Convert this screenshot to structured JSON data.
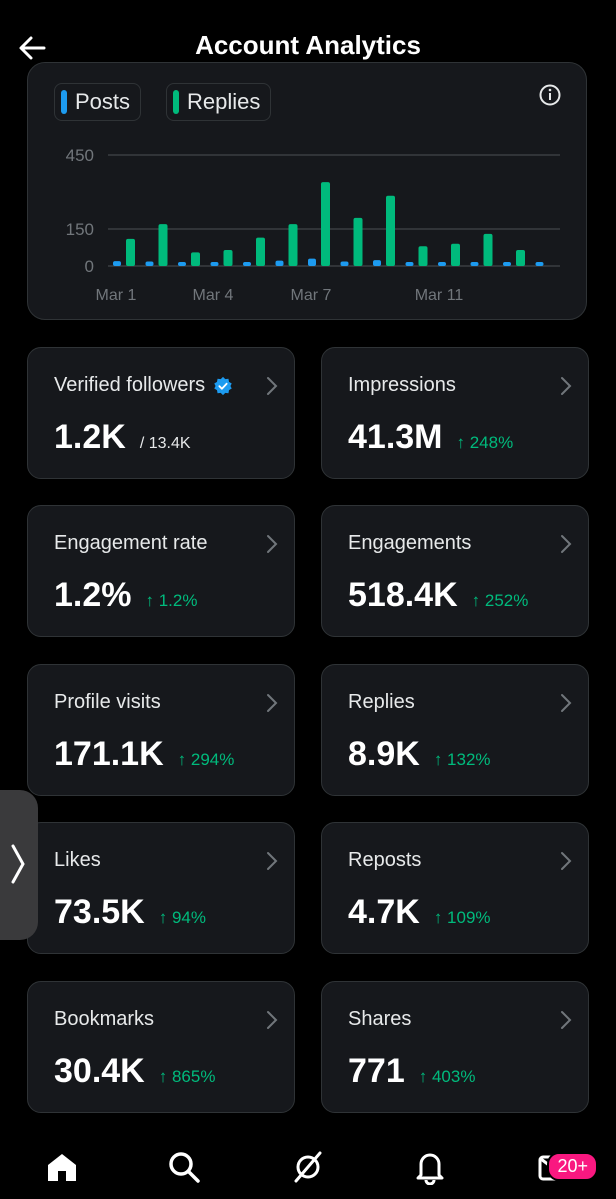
{
  "header": {
    "title": "Account Analytics"
  },
  "chart_data": {
    "type": "bar",
    "legend": [
      "Posts",
      "Replies"
    ],
    "x_ticks": [
      "Mar 1",
      "Mar 4",
      "Mar 7",
      "Mar 11"
    ],
    "y_ticks": [
      "450",
      "150",
      "0"
    ],
    "ylim": [
      0,
      450
    ],
    "series": [
      {
        "name": "Posts",
        "color": "#1d9bf0",
        "values": [
          20,
          18,
          10,
          12,
          16,
          22,
          30,
          18,
          24,
          10,
          8,
          14,
          6,
          4
        ]
      },
      {
        "name": "Replies",
        "color": "#00ba7c",
        "values": [
          110,
          170,
          55,
          65,
          115,
          170,
          340,
          195,
          285,
          80,
          90,
          130,
          65,
          0
        ]
      }
    ]
  },
  "cards": [
    {
      "label": "Verified followers",
      "value": "1.2K",
      "sub": "/ 13.4K",
      "verified": true
    },
    {
      "label": "Impressions",
      "value": "41.3M",
      "change": "↑ 248%"
    },
    {
      "label": "Engagement rate",
      "value": "1.2%",
      "change": "↑ 1.2%"
    },
    {
      "label": "Engagements",
      "value": "518.4K",
      "change": "↑ 252%"
    },
    {
      "label": "Profile visits",
      "value": "171.1K",
      "change": "↑ 294%"
    },
    {
      "label": "Replies",
      "value": "8.9K",
      "change": "↑ 132%"
    },
    {
      "label": "Likes",
      "value": "73.5K",
      "change": "↑ 94%"
    },
    {
      "label": "Reposts",
      "value": "4.7K",
      "change": "↑ 109%"
    },
    {
      "label": "Bookmarks",
      "value": "30.4K",
      "change": "↑ 865%"
    },
    {
      "label": "Shares",
      "value": "771",
      "change": "↑ 403%"
    }
  ],
  "nav": {
    "items": [
      "home-icon",
      "search-icon",
      "grok-icon",
      "notifications-icon",
      "messages-icon"
    ],
    "messages_badge": "20+"
  },
  "colors": {
    "accent_green": "#00ba7c",
    "accent_blue": "#1d9bf0",
    "badge_pink": "#f91880"
  }
}
